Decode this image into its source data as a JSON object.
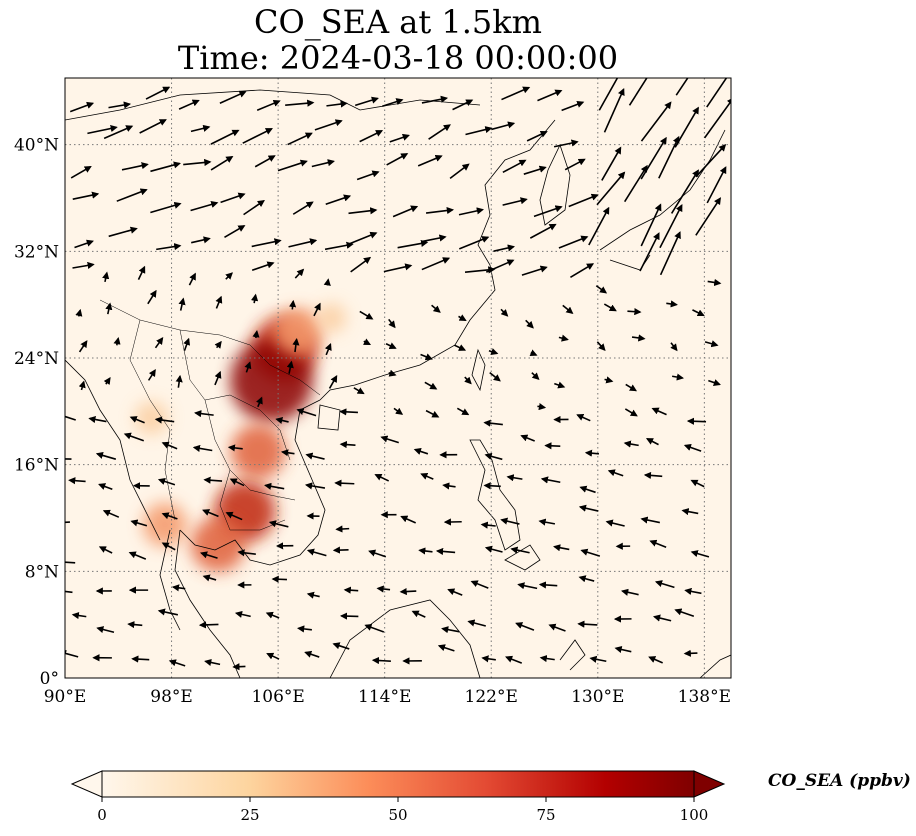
{
  "title": {
    "line1": "CO_SEA at 1.5km",
    "line2": "Time: 2024-03-18 00:00:00"
  },
  "map": {
    "variable": "CO_SEA",
    "level": "1.5km",
    "lon_range": [
      90,
      140
    ],
    "lat_range": [
      0,
      45
    ],
    "lon_ticks": [
      "90°E",
      "98°E",
      "106°E",
      "114°E",
      "122°E",
      "130°E",
      "138°E"
    ],
    "lat_ticks": [
      "0°",
      "8°N",
      "16°N",
      "24°N",
      "32°N",
      "40°N"
    ],
    "gridlines": true,
    "colormap": "OrRd",
    "colors": {
      "low": "#fff7ec",
      "mid": "#fdbb84",
      "high": "#7f0000"
    },
    "hotspots": [
      {
        "lon": 106.5,
        "lat": 24.7,
        "value": 70
      },
      {
        "lon": 105.5,
        "lat": 22.3,
        "value": 95
      },
      {
        "lon": 107.5,
        "lat": 26.0,
        "value": 45
      },
      {
        "lon": 104.5,
        "lat": 17.0,
        "value": 55
      },
      {
        "lon": 103.5,
        "lat": 12.5,
        "value": 65
      },
      {
        "lon": 101.5,
        "lat": 10.0,
        "value": 55
      },
      {
        "lon": 97.5,
        "lat": 11.5,
        "value": 40
      },
      {
        "lon": 96.5,
        "lat": 19.5,
        "value": 25
      },
      {
        "lon": 110.0,
        "lat": 27.0,
        "value": 20
      }
    ]
  },
  "colorbar": {
    "label": "CO_SEA (ppbv)",
    "ticks": [
      "0",
      "25",
      "50",
      "75",
      "100"
    ],
    "range": [
      0,
      100
    ],
    "extend": "both"
  }
}
